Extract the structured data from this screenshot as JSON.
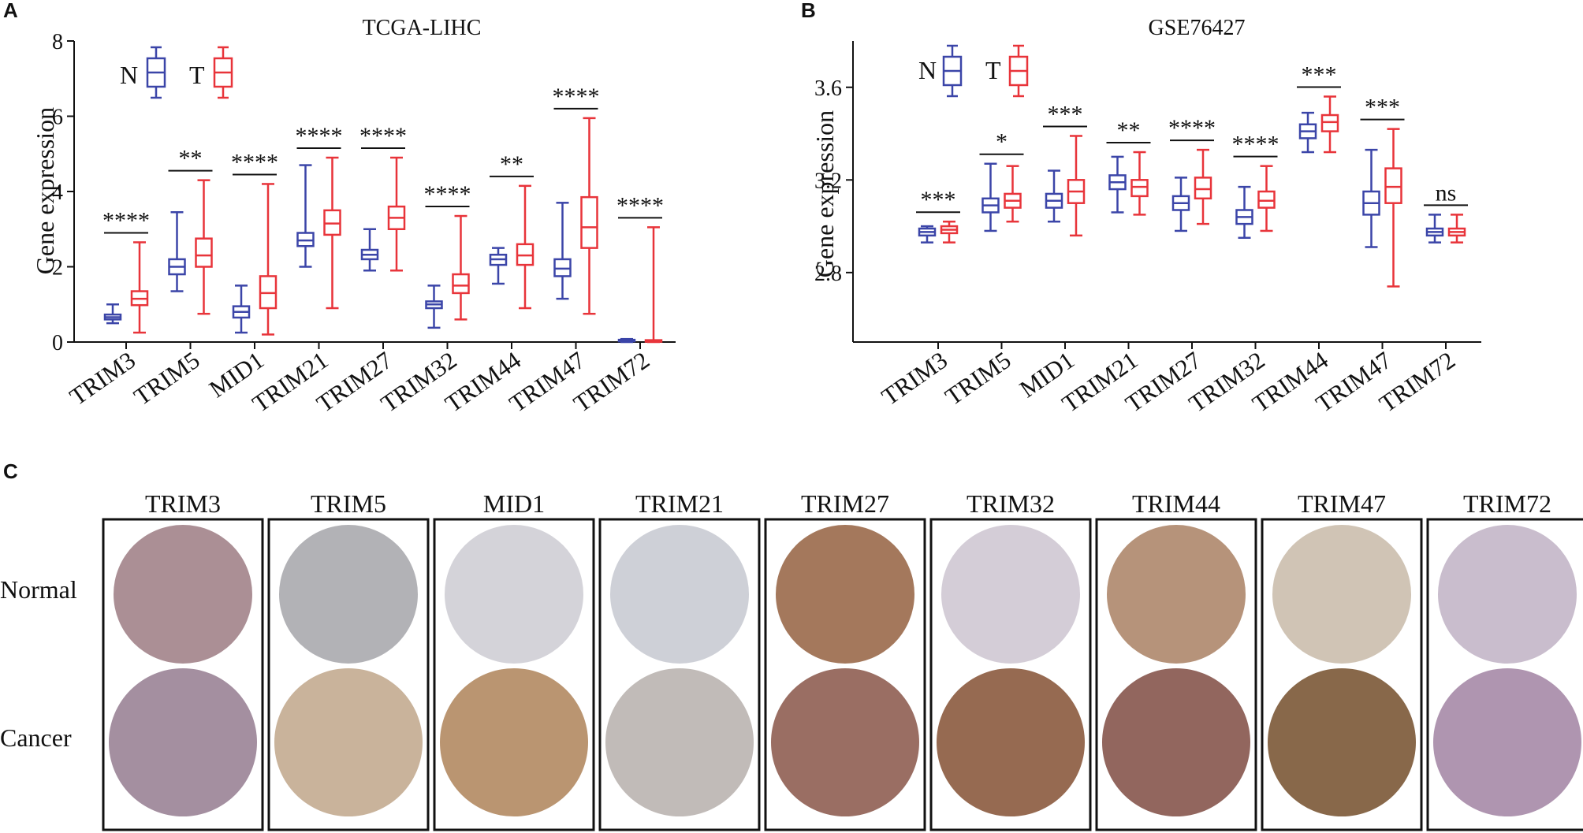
{
  "figure": {
    "panel_a_letter": "A",
    "panel_b_letter": "B",
    "panel_c_letter": "C"
  },
  "colors": {
    "normal": "#3b45a8",
    "tumor": "#e8343a",
    "axis": "#111111",
    "border": "#111111"
  },
  "chart_data": [
    {
      "type": "box",
      "title": "TCGA-LIHC",
      "ylabel": "Gene expression",
      "xlabel": "",
      "ylim": [
        0,
        8
      ],
      "yticks": [
        0,
        2,
        4,
        6,
        8
      ],
      "legend": [
        "N",
        "T"
      ],
      "categories": [
        "TRIM3",
        "TRIM5",
        "MID1",
        "TRIM21",
        "TRIM27",
        "TRIM32",
        "TRIM44",
        "TRIM47",
        "TRIM72"
      ],
      "significance": [
        "****",
        "**",
        "****",
        "****",
        "****",
        "****",
        "**",
        "****",
        "****"
      ],
      "series": [
        {
          "name": "N",
          "boxes": [
            {
              "min": 0.5,
              "q1": 0.6,
              "median": 0.66,
              "q3": 0.73,
              "max": 1.0
            },
            {
              "min": 1.35,
              "q1": 1.8,
              "median": 2.0,
              "q3": 2.2,
              "max": 3.45
            },
            {
              "min": 0.25,
              "q1": 0.65,
              "median": 0.8,
              "q3": 0.95,
              "max": 1.5
            },
            {
              "min": 2.0,
              "q1": 2.55,
              "median": 2.7,
              "q3": 2.9,
              "max": 4.7
            },
            {
              "min": 1.9,
              "q1": 2.2,
              "median": 2.32,
              "q3": 2.45,
              "max": 3.0
            },
            {
              "min": 0.38,
              "q1": 0.9,
              "median": 1.0,
              "q3": 1.08,
              "max": 1.5
            },
            {
              "min": 1.55,
              "q1": 2.05,
              "median": 2.2,
              "q3": 2.32,
              "max": 2.5
            },
            {
              "min": 1.15,
              "q1": 1.75,
              "median": 1.95,
              "q3": 2.2,
              "max": 3.7
            },
            {
              "min": 0.0,
              "q1": 0.02,
              "median": 0.04,
              "q3": 0.06,
              "max": 0.08
            }
          ]
        },
        {
          "name": "T",
          "boxes": [
            {
              "min": 0.25,
              "q1": 0.98,
              "median": 1.15,
              "q3": 1.35,
              "max": 2.65
            },
            {
              "min": 0.75,
              "q1": 2.0,
              "median": 2.3,
              "q3": 2.75,
              "max": 4.3
            },
            {
              "min": 0.2,
              "q1": 0.9,
              "median": 1.3,
              "q3": 1.75,
              "max": 4.2
            },
            {
              "min": 0.9,
              "q1": 2.85,
              "median": 3.15,
              "q3": 3.5,
              "max": 4.9
            },
            {
              "min": 1.9,
              "q1": 3.0,
              "median": 3.3,
              "q3": 3.6,
              "max": 4.9
            },
            {
              "min": 0.6,
              "q1": 1.3,
              "median": 1.5,
              "q3": 1.8,
              "max": 3.35
            },
            {
              "min": 0.9,
              "q1": 2.05,
              "median": 2.3,
              "q3": 2.6,
              "max": 4.15
            },
            {
              "min": 0.75,
              "q1": 2.5,
              "median": 3.05,
              "q3": 3.85,
              "max": 5.95
            },
            {
              "min": 0.0,
              "q1": 0.01,
              "median": 0.03,
              "q3": 0.05,
              "max": 3.05
            }
          ]
        }
      ]
    },
    {
      "type": "box",
      "title": "GSE76427",
      "ylabel": "Gene expression",
      "xlabel": "",
      "ylim": [
        2.5,
        3.8
      ],
      "yticks": [
        2.8,
        3.2,
        3.6
      ],
      "legend": [
        "N",
        "T"
      ],
      "categories": [
        "TRIM3",
        "TRIM5",
        "MID1",
        "TRIM21",
        "TRIM27",
        "TRIM32",
        "TRIM44",
        "TRIM47",
        "TRIM72"
      ],
      "significance": [
        "***",
        "*",
        "***",
        "**",
        "****",
        "****",
        "***",
        "***",
        "ns"
      ],
      "series": [
        {
          "name": "N",
          "boxes": [
            {
              "min": 2.93,
              "q1": 2.96,
              "median": 2.975,
              "q3": 2.99,
              "max": 3.0
            },
            {
              "min": 2.98,
              "q1": 3.06,
              "median": 3.09,
              "q3": 3.12,
              "max": 3.27
            },
            {
              "min": 3.02,
              "q1": 3.08,
              "median": 3.11,
              "q3": 3.14,
              "max": 3.24
            },
            {
              "min": 3.06,
              "q1": 3.16,
              "median": 3.19,
              "q3": 3.22,
              "max": 3.3
            },
            {
              "min": 2.98,
              "q1": 3.07,
              "median": 3.1,
              "q3": 3.13,
              "max": 3.21
            },
            {
              "min": 2.95,
              "q1": 3.01,
              "median": 3.04,
              "q3": 3.07,
              "max": 3.17
            },
            {
              "min": 3.32,
              "q1": 3.38,
              "median": 3.41,
              "q3": 3.44,
              "max": 3.49
            },
            {
              "min": 2.91,
              "q1": 3.05,
              "median": 3.1,
              "q3": 3.15,
              "max": 3.33
            },
            {
              "min": 2.93,
              "q1": 2.96,
              "median": 2.975,
              "q3": 2.99,
              "max": 3.05
            }
          ]
        },
        {
          "name": "T",
          "boxes": [
            {
              "min": 2.93,
              "q1": 2.97,
              "median": 2.985,
              "q3": 3.0,
              "max": 3.02
            },
            {
              "min": 3.02,
              "q1": 3.08,
              "median": 3.11,
              "q3": 3.14,
              "max": 3.26
            },
            {
              "min": 2.96,
              "q1": 3.1,
              "median": 3.15,
              "q3": 3.2,
              "max": 3.39
            },
            {
              "min": 3.05,
              "q1": 3.13,
              "median": 3.17,
              "q3": 3.2,
              "max": 3.32
            },
            {
              "min": 3.01,
              "q1": 3.12,
              "median": 3.16,
              "q3": 3.21,
              "max": 3.33
            },
            {
              "min": 2.98,
              "q1": 3.08,
              "median": 3.11,
              "q3": 3.15,
              "max": 3.26
            },
            {
              "min": 3.32,
              "q1": 3.41,
              "median": 3.45,
              "q3": 3.48,
              "max": 3.56
            },
            {
              "min": 2.74,
              "q1": 3.1,
              "median": 3.17,
              "q3": 3.25,
              "max": 3.42
            },
            {
              "min": 2.93,
              "q1": 2.96,
              "median": 2.975,
              "q3": 2.99,
              "max": 3.05
            }
          ]
        }
      ]
    }
  ],
  "ihc": {
    "genes": [
      "TRIM3",
      "TRIM5",
      "MID1",
      "TRIM21",
      "TRIM27",
      "TRIM32",
      "TRIM44",
      "TRIM47",
      "TRIM72"
    ],
    "row_labels": [
      "Normal",
      "Cancer"
    ],
    "stain_colors": {
      "normal": [
        "#9c7b83",
        "#a5a4a9",
        "#cdcbd2",
        "#c6c8d0",
        "#94603f",
        "#cdc4d0",
        "#a98063",
        "#c8baa8",
        "#bfb2c4"
      ],
      "cancer": [
        "#9a8396",
        "#c3ab90",
        "#b38a62",
        "#bab4b0",
        "#8f5e52",
        "#8b5a3e",
        "#86554c",
        "#7b5836",
        "#a68aa7"
      ]
    }
  }
}
